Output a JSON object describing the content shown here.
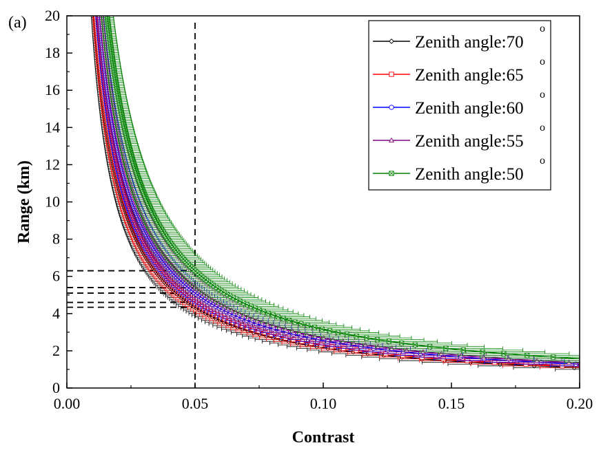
{
  "panel_label": "(a)",
  "chart_data": {
    "type": "line",
    "title": "",
    "xlabel": "Contrast",
    "ylabel": "Range (km)",
    "xlim": [
      0,
      0.2
    ],
    "ylim": [
      0,
      20
    ],
    "xticks": [
      "0.00",
      "0.05",
      "0.10",
      "0.15",
      "0.20"
    ],
    "yticks": [
      "0",
      "2",
      "4",
      "6",
      "8",
      "10",
      "12",
      "14",
      "16",
      "18",
      "20"
    ],
    "grid": false,
    "legend_position": "top-right",
    "model": "Range = k / Contrast (approx.), with horizontal error bars on Contrast",
    "series": [
      {
        "name": "Zenith angle:70",
        "degree_mark": "o",
        "color": "#000000",
        "marker": "diamond",
        "k": 0.217,
        "rel_err": 0.12,
        "points": [
          [
            0.0109,
            20
          ],
          [
            0.0145,
            15
          ],
          [
            0.0217,
            10
          ],
          [
            0.029,
            7.5
          ],
          [
            0.0434,
            5
          ],
          [
            0.05,
            4.34
          ],
          [
            0.0723,
            3
          ],
          [
            0.1085,
            2
          ],
          [
            0.2,
            1.09
          ]
        ]
      },
      {
        "name": "Zenith angle:65",
        "degree_mark": "o",
        "color": "#ff0000",
        "marker": "square",
        "k": 0.23,
        "rel_err": 0.12,
        "points": [
          [
            0.0115,
            20
          ],
          [
            0.0153,
            15
          ],
          [
            0.023,
            10
          ],
          [
            0.0307,
            7.5
          ],
          [
            0.046,
            5
          ],
          [
            0.05,
            4.6
          ],
          [
            0.0767,
            3
          ],
          [
            0.115,
            2
          ],
          [
            0.2,
            1.15
          ]
        ]
      },
      {
        "name": "Zenith angle:60",
        "degree_mark": "o",
        "color": "#0000ff",
        "marker": "circle",
        "k": 0.255,
        "rel_err": 0.12,
        "points": [
          [
            0.01275,
            20
          ],
          [
            0.017,
            15
          ],
          [
            0.0255,
            10
          ],
          [
            0.034,
            7.5
          ],
          [
            0.051,
            5
          ],
          [
            0.05,
            5.1
          ],
          [
            0.085,
            3
          ],
          [
            0.1275,
            2
          ],
          [
            0.2,
            1.28
          ]
        ]
      },
      {
        "name": "Zenith angle:55",
        "degree_mark": "o",
        "color": "#800080",
        "marker": "triangle",
        "k": 0.27,
        "rel_err": 0.12,
        "points": [
          [
            0.0135,
            20
          ],
          [
            0.018,
            15
          ],
          [
            0.027,
            10
          ],
          [
            0.036,
            7.5
          ],
          [
            0.054,
            5
          ],
          [
            0.05,
            5.4
          ],
          [
            0.09,
            3
          ],
          [
            0.135,
            2
          ],
          [
            0.2,
            1.35
          ]
        ]
      },
      {
        "name": "Zenith angle:50",
        "degree_mark": "o",
        "color": "#008000",
        "marker": "square-x",
        "k": 0.315,
        "rel_err": 0.15,
        "points": [
          [
            0.01575,
            20
          ],
          [
            0.021,
            15
          ],
          [
            0.0315,
            10
          ],
          [
            0.042,
            7.5
          ],
          [
            0.063,
            5
          ],
          [
            0.05,
            6.3
          ],
          [
            0.105,
            3
          ],
          [
            0.1575,
            2
          ],
          [
            0.2,
            1.58
          ]
        ]
      }
    ],
    "reference_lines": {
      "vertical_contrast": 0.05,
      "horizontal_ranges": [
        4.34,
        4.6,
        5.1,
        5.4,
        6.3
      ]
    }
  }
}
